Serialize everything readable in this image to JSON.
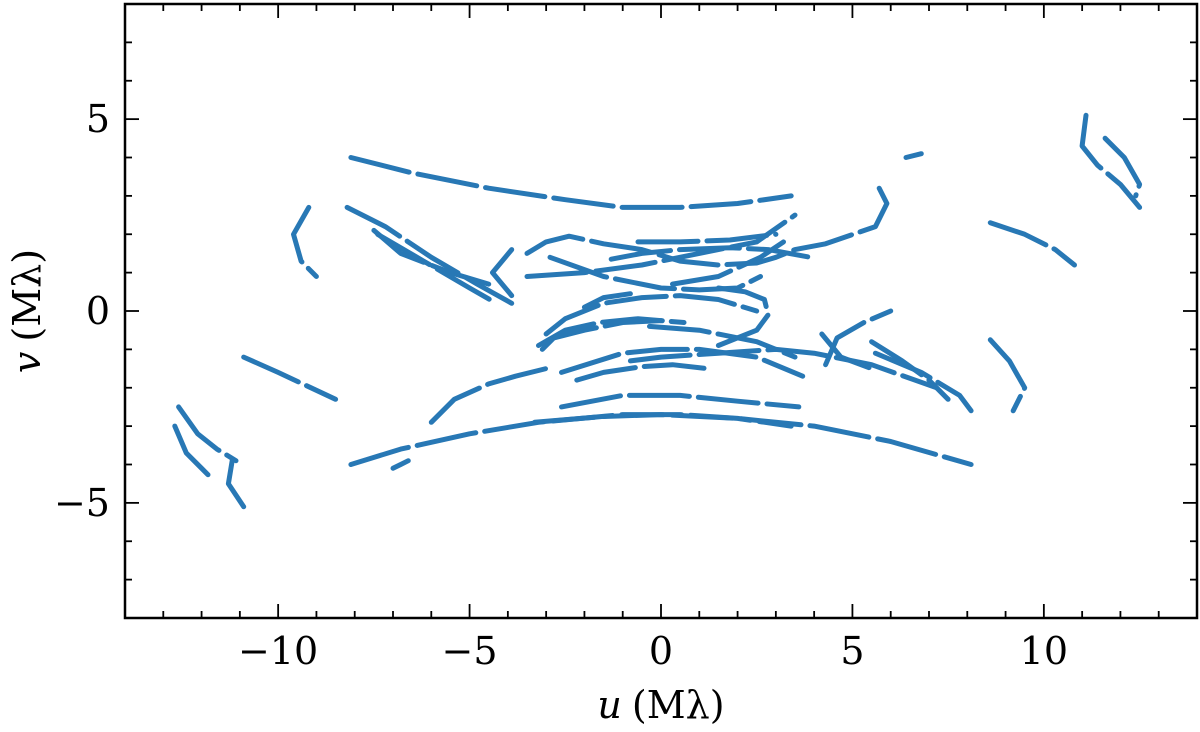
{
  "chart_data": {
    "type": "scatter",
    "xlabel_var": "u",
    "xlabel_unit": "(Mλ)",
    "ylabel_var": "v",
    "ylabel_unit": "(Mλ)",
    "xlim": [
      -14,
      14
    ],
    "ylim": [
      -8,
      8
    ],
    "xticks": [
      -10,
      -5,
      0,
      5,
      10
    ],
    "yticks": [
      -5,
      0,
      5
    ],
    "xtick_labels": [
      "−10",
      "−5",
      "0",
      "5",
      "10"
    ],
    "ytick_labels": [
      "−5",
      "0",
      "5"
    ],
    "grid": false,
    "legend": "none",
    "color": "#2878b5",
    "tracks": [
      {
        "x": [
          -8.1,
          -6.5,
          -4.5,
          -2.5,
          -1.0,
          0.5,
          2.0,
          3.4
        ],
        "y": [
          4.0,
          3.6,
          3.2,
          2.9,
          2.7,
          2.7,
          2.8,
          3.0
        ]
      },
      {
        "x": [
          -8.1,
          -6.8,
          -5.0,
          -3.2,
          -1.0,
          0.5,
          2.0,
          3.4
        ],
        "y": [
          -4.0,
          -3.6,
          -3.2,
          -2.9,
          -2.7,
          -2.7,
          -2.8,
          -3.0
        ]
      },
      {
        "x": [
          -3.3,
          -1.5,
          0.0,
          2.0,
          4.0,
          6.0,
          8.1
        ],
        "y": [
          -2.9,
          -2.75,
          -2.7,
          -2.8,
          -3.0,
          -3.4,
          -4.0
        ]
      },
      {
        "x": [
          -2.6,
          -1.0,
          0.5,
          2.0,
          3.6
        ],
        "y": [
          -2.5,
          -2.2,
          -2.2,
          -2.35,
          -2.5
        ]
      },
      {
        "x": [
          -3.5,
          -2.0,
          -0.5,
          1.0,
          2.5,
          3.5
        ],
        "y": [
          0.9,
          1.0,
          1.2,
          1.5,
          1.8,
          2.5
        ]
      },
      {
        "x": [
          0.3,
          1.5,
          2.6,
          3.2
        ],
        "y": [
          0.7,
          0.9,
          1.4,
          1.8
        ]
      },
      {
        "x": [
          -3.9,
          -4.4,
          -3.9
        ],
        "y": [
          1.6,
          1.0,
          0.4
        ]
      },
      {
        "x": [
          -3.5,
          -3.0,
          -2.4,
          -1.5,
          -0.5,
          0.5,
          1.5,
          2.5,
          3.0,
          3.5,
          4.3,
          5.6,
          5.9,
          5.7
        ],
        "y": [
          1.5,
          1.8,
          1.95,
          1.75,
          1.6,
          1.3,
          1.2,
          1.25,
          1.4,
          1.6,
          1.75,
          2.2,
          2.8,
          3.2
        ]
      },
      {
        "x": [
          -2.9,
          -1.5,
          0.0,
          1.0,
          2.0,
          2.6
        ],
        "y": [
          1.4,
          0.9,
          0.6,
          0.55,
          0.6,
          0.9
        ]
      },
      {
        "x": [
          -1.3,
          -0.5,
          0.5,
          1.8,
          2.8,
          3.9
        ],
        "y": [
          1.35,
          1.5,
          1.6,
          1.65,
          1.6,
          1.4
        ]
      },
      {
        "x": [
          -0.6,
          0.5,
          1.8,
          3.0
        ],
        "y": [
          1.8,
          1.8,
          1.85,
          2.0
        ]
      },
      {
        "x": [
          -0.8,
          0.0,
          1.5,
          3.0,
          4.0,
          5.5,
          7.2
        ],
        "y": [
          -1.3,
          -1.2,
          -1.1,
          -1.0,
          -1.1,
          -1.4,
          -2.0
        ]
      },
      {
        "x": [
          -3.1,
          -2.8,
          -2.0,
          -1.0,
          0.0
        ],
        "y": [
          -1.0,
          -0.7,
          -0.5,
          -0.3,
          -0.25
        ]
      },
      {
        "x": [
          -0.3,
          1.0,
          2.5,
          3.5
        ],
        "y": [
          -0.4,
          -0.5,
          -0.8,
          -1.2
        ]
      },
      {
        "x": [
          -2.6,
          -1.0,
          0.0,
          1.0,
          2.5,
          3.7
        ],
        "y": [
          -1.6,
          -1.1,
          -1.0,
          -1.0,
          -1.2,
          -1.7
        ]
      },
      {
        "x": [
          -3.0,
          -2.5,
          -1.5,
          -0.5,
          0.5,
          1.5,
          2.5
        ],
        "y": [
          -0.6,
          -0.2,
          0.2,
          0.35,
          0.4,
          0.3,
          0.0
        ]
      },
      {
        "x": [
          -2.0,
          -1.5,
          -0.8
        ],
        "y": [
          0.1,
          0.35,
          0.45
        ]
      },
      {
        "x": [
          1.5,
          2.5,
          2.8,
          2.7,
          2.2,
          1.5
        ],
        "y": [
          -0.9,
          -0.5,
          -0.1,
          0.3,
          0.5,
          0.6
        ]
      },
      {
        "x": [
          -2.2,
          -1.5,
          -0.5,
          0.3,
          1.2
        ],
        "y": [
          -1.8,
          -1.6,
          -1.45,
          -1.4,
          -1.5
        ]
      },
      {
        "x": [
          -7.5,
          -6.8,
          -5.5,
          -4.5
        ],
        "y": [
          2.1,
          1.5,
          1.0,
          0.7
        ]
      },
      {
        "x": [
          -7.4,
          -6.2,
          -5.0,
          -4.3
        ],
        "y": [
          2.0,
          1.3,
          0.6,
          0.2
        ]
      },
      {
        "x": [
          -8.2,
          -7.2,
          -6.0,
          -4.8,
          -3.9
        ],
        "y": [
          2.7,
          2.2,
          1.4,
          0.7,
          0.2
        ]
      },
      {
        "x": [
          -9.2,
          -9.6,
          -9.4,
          -9.0
        ],
        "y": [
          2.7,
          2.0,
          1.3,
          0.9
        ]
      },
      {
        "x": [
          -3.2,
          -2.5,
          -1.6,
          -0.6,
          0.6
        ],
        "y": [
          -0.9,
          -0.5,
          -0.3,
          -0.2,
          -0.3
        ]
      },
      {
        "x": [
          4.3,
          4.6,
          5.3,
          6.0
        ],
        "y": [
          -1.4,
          -0.7,
          -0.3,
          0.0
        ]
      },
      {
        "x": [
          4.2,
          4.7,
          5.5
        ],
        "y": [
          -0.6,
          -1.2,
          -1.5
        ]
      },
      {
        "x": [
          5.5,
          6.3,
          7.0,
          7.5
        ],
        "y": [
          -0.8,
          -1.3,
          -1.8,
          -2.3
        ]
      },
      {
        "x": [
          5.6,
          6.8,
          7.8,
          8.1
        ],
        "y": [
          -1.1,
          -1.6,
          -2.2,
          -2.6
        ]
      },
      {
        "x": [
          8.6,
          9.1,
          9.5,
          9.2
        ],
        "y": [
          -0.75,
          -1.3,
          -2.0,
          -2.6
        ]
      },
      {
        "x": [
          8.6,
          9.5,
          10.3,
          10.8
        ],
        "y": [
          2.3,
          2.0,
          1.6,
          1.2
        ]
      },
      {
        "x": [
          11.1,
          11.0,
          11.4,
          12.0,
          12.5
        ],
        "y": [
          5.1,
          4.3,
          3.8,
          3.3,
          2.7
        ]
      },
      {
        "x": [
          11.6,
          12.1,
          12.5,
          12.4
        ],
        "y": [
          4.5,
          4.0,
          3.3,
          3.0
        ]
      },
      {
        "x": [
          6.4,
          6.8
        ],
        "y": [
          4.0,
          4.1
        ]
      },
      {
        "x": [
          -11.2,
          -11.3,
          -10.9
        ],
        "y": [
          -3.9,
          -4.5,
          -5.1
        ]
      },
      {
        "x": [
          -12.6,
          -12.1,
          -11.6,
          -11.1
        ],
        "y": [
          -2.5,
          -3.2,
          -3.6,
          -3.9
        ]
      },
      {
        "x": [
          -12.7,
          -12.4,
          -12.0,
          -11.7
        ],
        "y": [
          -3.0,
          -3.7,
          -4.1,
          -4.4
        ]
      },
      {
        "x": [
          -6.6,
          -6.8,
          -7.0
        ],
        "y": [
          -3.9,
          -4.0,
          -4.1
        ]
      },
      {
        "x": [
          -10.9,
          -10.0,
          -8.5
        ],
        "y": [
          -1.2,
          -1.6,
          -2.3
        ]
      },
      {
        "x": [
          -6.0,
          -5.4,
          -4.5,
          -3.8,
          -3.0
        ],
        "y": [
          -2.9,
          -2.3,
          -1.9,
          -1.7,
          -1.5
        ]
      }
    ]
  }
}
